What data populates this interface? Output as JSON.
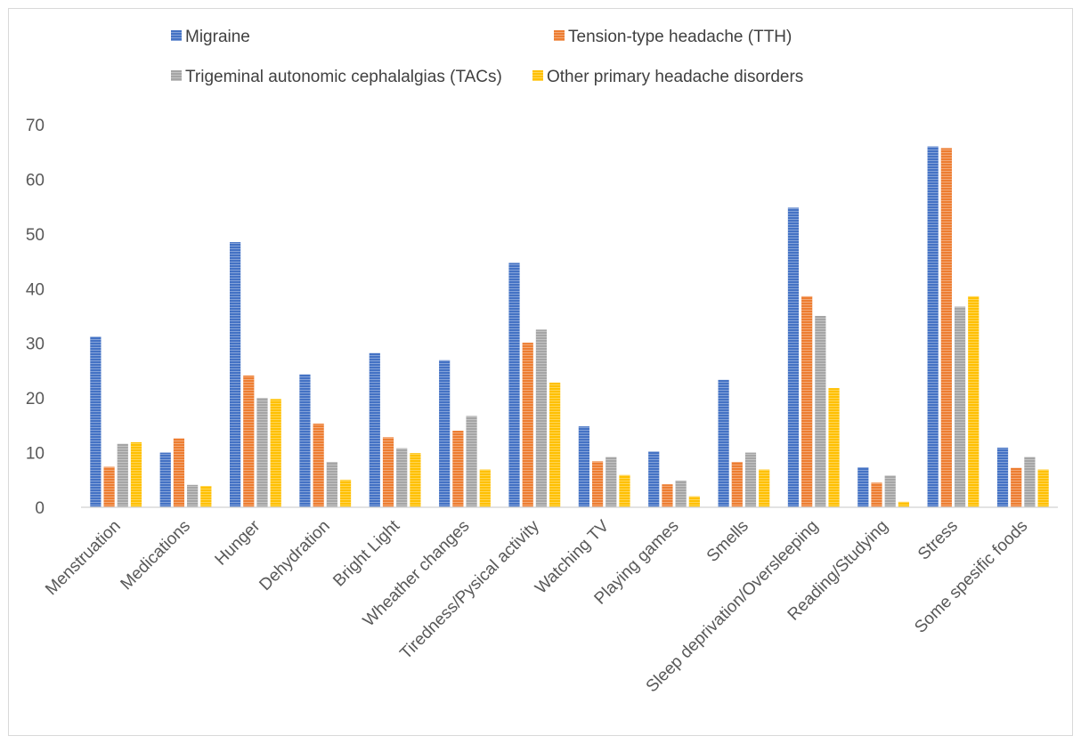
{
  "chart_data": {
    "type": "bar",
    "title": "",
    "xlabel": "",
    "ylabel": "",
    "ylim": [
      0,
      70
    ],
    "yticks": [
      0,
      10,
      20,
      30,
      40,
      50,
      60,
      70
    ],
    "grid": false,
    "legend_position": "top",
    "categories": [
      "Menstruation",
      "Medications",
      "Hunger",
      "Dehydration",
      "Bright Light",
      "Wheather changes",
      "Tiredness/Pysical activity",
      "Watching TV",
      "Playing games",
      "Smells",
      "Sleep deprivation/Oversleeping",
      "Reading/Studying",
      "Stress",
      "Some spesific foods"
    ],
    "series": [
      {
        "name": "Migraine",
        "color": "#4472C4",
        "values": [
          31.2,
          10,
          48.5,
          24.3,
          28.2,
          26.9,
          44.7,
          14.8,
          10.2,
          23.3,
          54.8,
          7.3,
          66,
          10.9
        ]
      },
      {
        "name": "Tension-type headache (TTH)",
        "color": "#ED7D31",
        "values": [
          7.4,
          12.6,
          24.1,
          15.3,
          12.8,
          14,
          30.1,
          8.4,
          4.2,
          8.3,
          38.6,
          4.5,
          65.7,
          7.2
        ]
      },
      {
        "name": "Trigeminal autonomic cephalalgias (TACs)",
        "color": "#A5A5A5",
        "values": [
          11.6,
          4.1,
          20,
          8.3,
          10.8,
          16.7,
          32.5,
          9.2,
          4.9,
          10,
          35,
          5.8,
          36.7,
          9.2
        ]
      },
      {
        "name": "Other primary headache disorders",
        "color": "#FFC000",
        "values": [
          11.9,
          3.9,
          19.8,
          5,
          9.9,
          6.9,
          22.8,
          5.9,
          2,
          6.9,
          21.8,
          1,
          38.6,
          6.9
        ]
      }
    ]
  }
}
